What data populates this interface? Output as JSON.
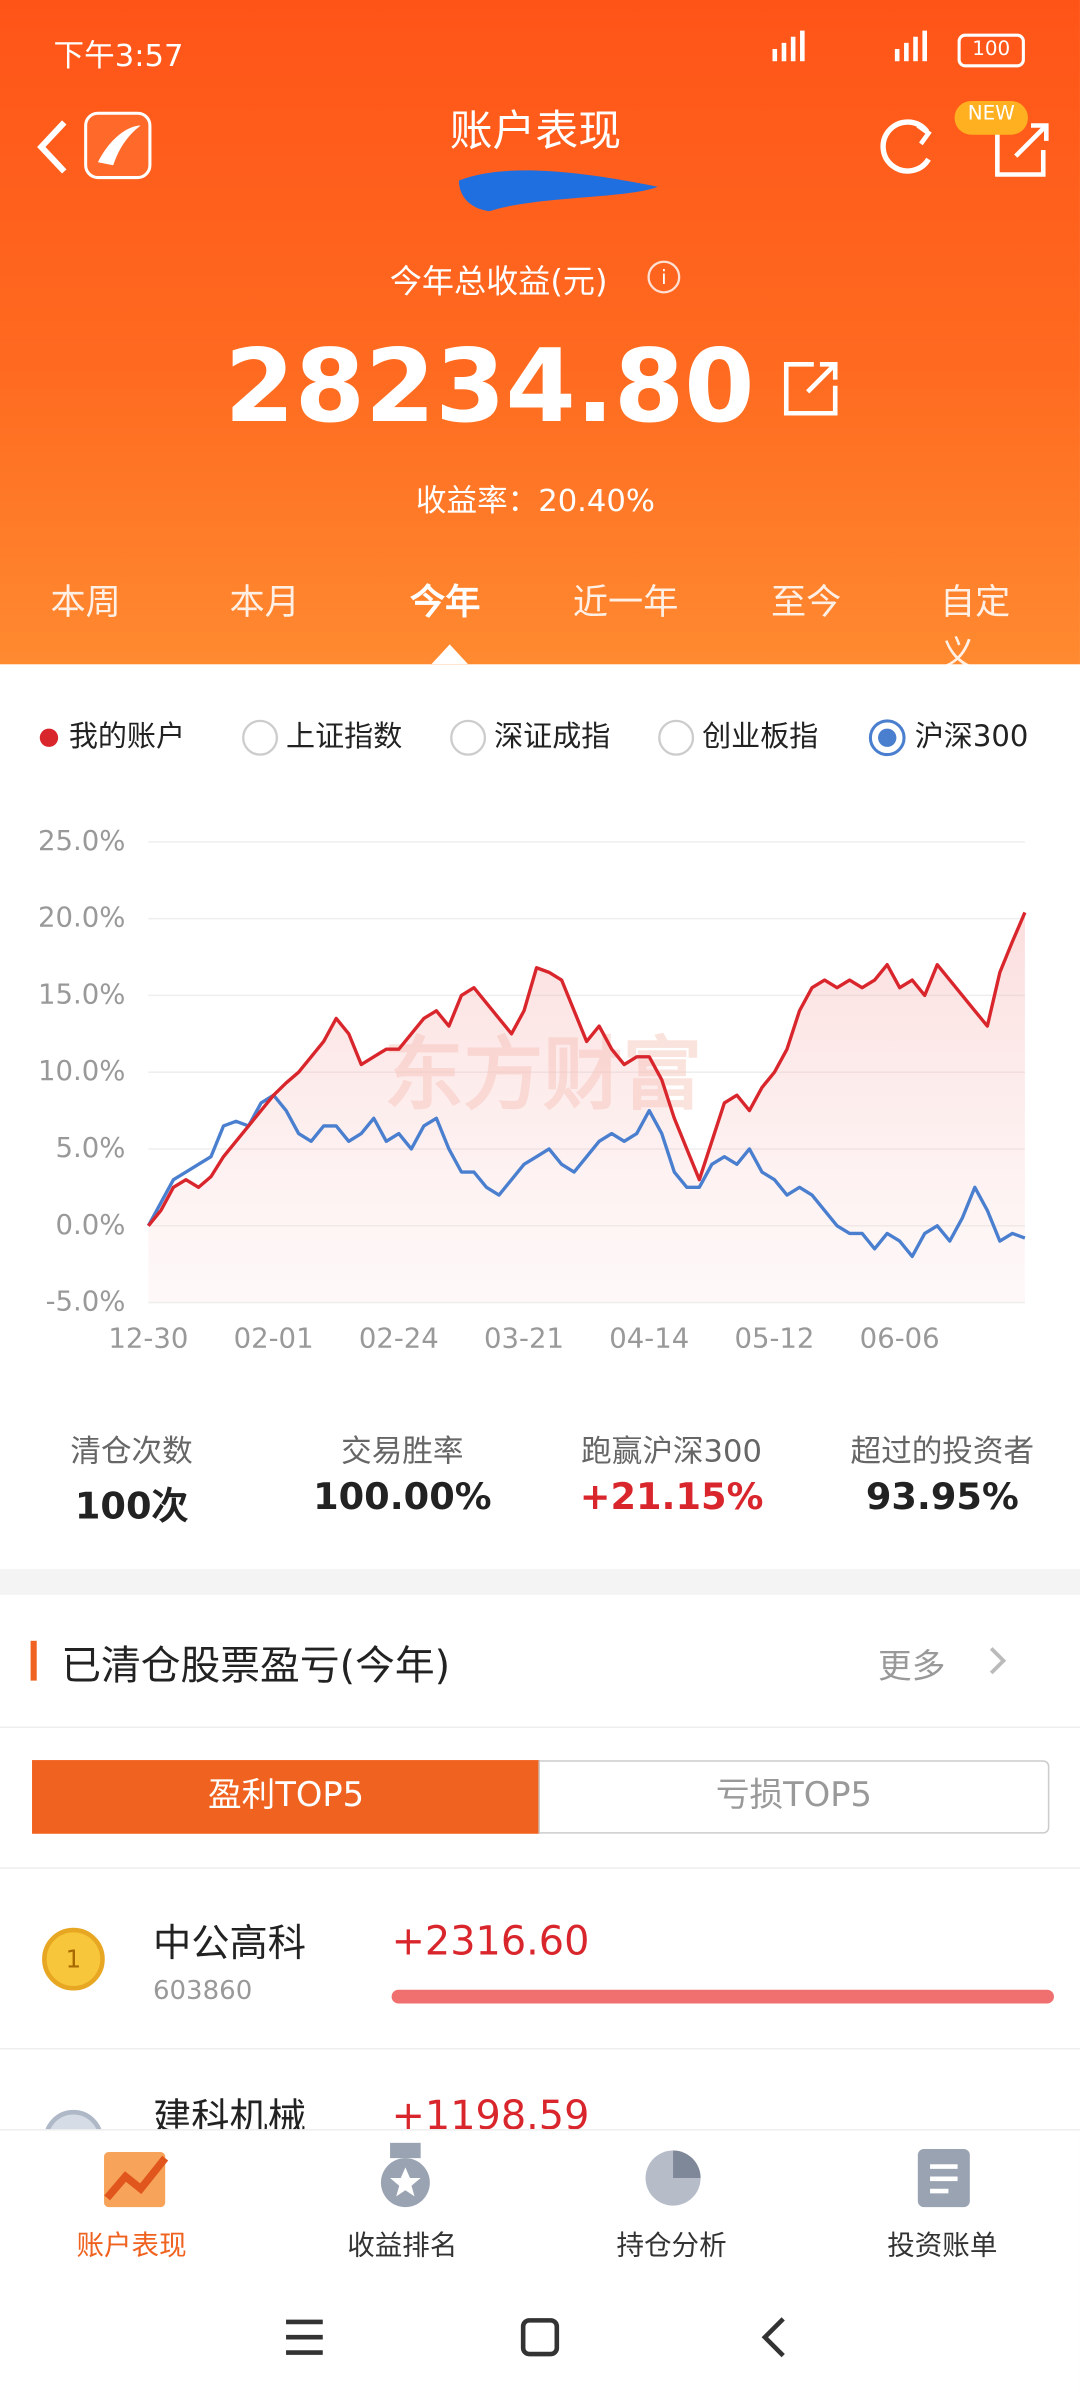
{
  "status_bar": {
    "time": "下午3:57",
    "battery": "100"
  },
  "header": {
    "title": "账户表现",
    "badge": "NEW"
  },
  "summary": {
    "label": "今年总收益(元)",
    "value": "28234.80",
    "rate_label": "收益率：",
    "rate": "20.40%"
  },
  "tabs": {
    "items": [
      "本周",
      "本月",
      "今年",
      "近一年",
      "至今",
      "自定义"
    ],
    "active": "今年"
  },
  "chart_data": {
    "type": "line",
    "watermark": "东方财富",
    "index_options": [
      "上证指数",
      "深证成指",
      "创业板指"
    ],
    "categories": [
      "12-30",
      null,
      null,
      null,
      null,
      null,
      null,
      null,
      null,
      null,
      "02-01",
      null,
      null,
      null,
      null,
      null,
      null,
      null,
      null,
      null,
      "02-24",
      null,
      null,
      null,
      null,
      null,
      null,
      null,
      null,
      null,
      "03-21",
      null,
      null,
      null,
      null,
      null,
      null,
      null,
      null,
      null,
      "04-14",
      null,
      null,
      null,
      null,
      null,
      null,
      null,
      null,
      null,
      "05-12",
      null,
      null,
      null,
      null,
      null,
      null,
      null,
      null,
      null,
      "06-06",
      null,
      null,
      null,
      null,
      null,
      null,
      null,
      null,
      null,
      null
    ],
    "series": [
      {
        "name": "我的账户",
        "color": "#d9262c",
        "values": [
          0,
          1,
          2.5,
          3,
          2.5,
          3.2,
          4.5,
          5.5,
          6.5,
          7.5,
          8.5,
          9.3,
          10,
          11,
          12,
          13.5,
          12.5,
          10.5,
          11,
          11.5,
          11.5,
          12.5,
          13.5,
          14,
          13,
          15,
          15.5,
          14.5,
          13.5,
          12.5,
          14,
          16.8,
          16.5,
          16,
          14,
          12,
          13,
          11.5,
          10.5,
          11,
          11,
          9.5,
          7,
          5,
          3,
          5.5,
          8,
          8.5,
          7.5,
          9,
          10,
          11.5,
          14,
          15.5,
          16,
          15.5,
          16,
          15.5,
          16,
          17,
          15.5,
          16,
          15,
          17,
          16,
          15,
          14,
          13,
          16.5,
          18.5,
          20.4
        ]
      },
      {
        "name": "沪深300",
        "color": "#4a7fcf",
        "values": [
          0,
          1.5,
          3,
          3.5,
          4,
          4.5,
          6.5,
          6.8,
          6.5,
          8,
          8.5,
          7.5,
          6,
          5.5,
          6.5,
          6.5,
          5.5,
          6,
          7,
          5.5,
          6,
          5,
          6.5,
          7,
          5,
          3.5,
          3.5,
          2.5,
          2,
          3,
          4,
          4.5,
          5,
          4,
          3.5,
          4.5,
          5.5,
          6,
          5.5,
          6,
          7.5,
          6,
          3.5,
          2.5,
          2.5,
          4,
          4.5,
          4,
          5,
          3.5,
          3,
          2,
          2.5,
          2,
          1,
          0,
          -0.5,
          -0.5,
          -1.5,
          -0.5,
          -1,
          -2,
          -0.5,
          0,
          -1,
          0.5,
          2.5,
          1,
          -1,
          -0.5,
          -0.8
        ]
      }
    ],
    "ylim": [
      -5,
      25
    ],
    "yticks": [
      {
        "value": 25,
        "label": "25.0%"
      },
      {
        "value": 20,
        "label": "20.0%"
      },
      {
        "value": 15,
        "label": "15.0%"
      },
      {
        "value": 10,
        "label": "10.0%"
      },
      {
        "value": 5,
        "label": "5.0%"
      },
      {
        "value": 0,
        "label": "0.0%"
      },
      {
        "value": -5,
        "label": "-5.0%"
      }
    ],
    "grid": true
  },
  "stats": [
    {
      "label": "清仓次数",
      "value": "100次"
    },
    {
      "label": "交易胜率",
      "value": "100.00%"
    },
    {
      "label": "跑赢沪深300",
      "value": "+21.15%"
    },
    {
      "label": "超过的投资者",
      "value": "93.95%"
    }
  ],
  "section": {
    "title": "已清仓股票盈亏(今年)",
    "more": "更多",
    "toggle": [
      "盈利TOP5",
      "亏损TOP5"
    ],
    "rows": [
      {
        "rank": "1",
        "name": "中公高科",
        "code": "603860",
        "profit": "+2316.60"
      },
      {
        "name": "建科机械",
        "profit": "+1198.59"
      }
    ]
  },
  "bottom_nav": [
    "账户表现",
    "收益排名",
    "持仓分析",
    "投资账单"
  ]
}
